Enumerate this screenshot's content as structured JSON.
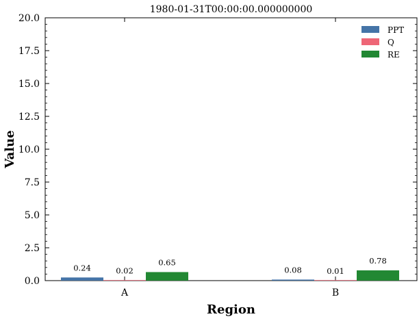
{
  "chart_data": {
    "type": "bar",
    "title": "1980-01-31T00:00:00.000000000",
    "xlabel": "Region",
    "ylabel": "Value",
    "categories": [
      "A",
      "B"
    ],
    "series": [
      {
        "name": "PPT",
        "values": [
          0.24,
          0.08
        ],
        "color": "#4574a7"
      },
      {
        "name": "Q",
        "values": [
          0.02,
          0.01
        ],
        "color": "#ee6677"
      },
      {
        "name": "RE",
        "values": [
          0.65,
          0.78
        ],
        "color": "#228833"
      }
    ],
    "data_labels": [
      [
        "0.24",
        "0.08"
      ],
      [
        "0.02",
        "0.01"
      ],
      [
        "0.65",
        "0.78"
      ]
    ],
    "ylim": [
      0,
      20
    ],
    "yticks": [
      "0.0",
      "2.5",
      "5.0",
      "7.5",
      "10.0",
      "12.5",
      "15.0",
      "17.5",
      "20.0"
    ],
    "grid": false,
    "legend_position": "top-right"
  }
}
